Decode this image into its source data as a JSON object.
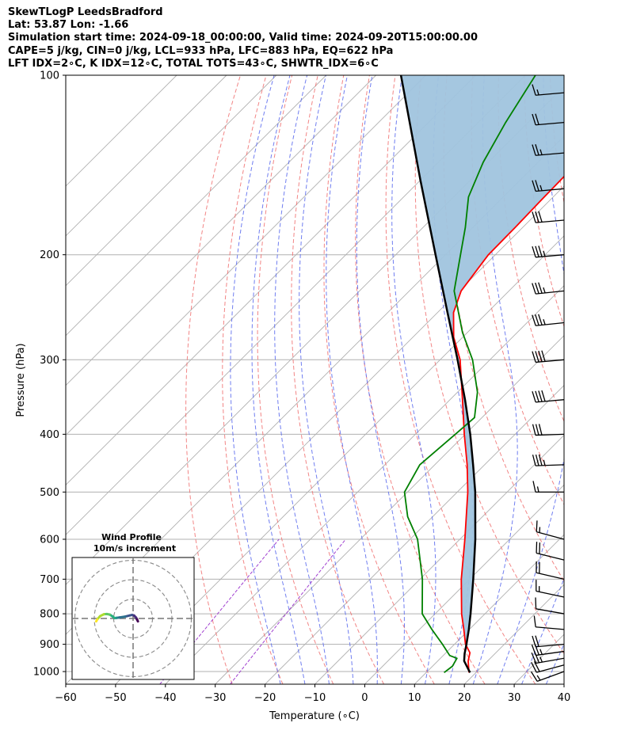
{
  "header": {
    "line1": "SkewTLogP LeedsBradford",
    "line2": "Lat: 53.87   Lon: -1.66",
    "line3": "Simulation start time: 2024-09-18_00:00:00, Valid time: 2024-09-20T15:00:00.00",
    "line4": "CAPE=5 j/kg, CIN=0 j/kg, LCL=933 hPa, LFC=883 hPa, EQ=622 hPa",
    "line5": "LFT IDX=2∘C, K IDX=12∘C, TOTAL TOTS=43∘C, SHWTR_IDX=6∘C"
  },
  "colors": {
    "temperature": "#ff0000",
    "dewpoint": "#008000",
    "parcel": "#000000",
    "cape_fill": "#a0c4de",
    "dry_adiabat": "#f07070",
    "moist_adiabat": "#6070ee",
    "mixing_ratio": "#a040d0",
    "isotherm": "#b0b0b0",
    "grid": "#b0b0b0"
  },
  "chart_data": {
    "type": "line",
    "title": "SkewTLogP LeedsBradford",
    "xlabel": "Temperature (∘C)",
    "ylabel": "Pressure (hPa)",
    "xlim": [
      -60,
      40
    ],
    "ylim": [
      1050,
      100
    ],
    "x_ticks": [
      -60,
      -50,
      -40,
      -30,
      -20,
      -10,
      0,
      10,
      20,
      30,
      40
    ],
    "y_ticks": [
      100,
      200,
      300,
      400,
      500,
      600,
      700,
      800,
      900,
      1000
    ],
    "skew_factor": 1.0,
    "series": [
      {
        "name": "temperature",
        "points": [
          [
            1004,
            18.6
          ],
          [
            960,
            16.1
          ],
          [
            930,
            14.8
          ],
          [
            900,
            12.2
          ],
          [
            850,
            8.9
          ],
          [
            800,
            5.3
          ],
          [
            700,
            -1.7
          ],
          [
            600,
            -9.0
          ],
          [
            500,
            -17.9
          ],
          [
            450,
            -23.5
          ],
          [
            400,
            -30.2
          ],
          [
            350,
            -37.5
          ],
          [
            300,
            -46.0
          ],
          [
            275,
            -51.8
          ],
          [
            250,
            -56.8
          ],
          [
            230,
            -59.6
          ],
          [
            200,
            -61.4
          ],
          [
            180,
            -61.5
          ],
          [
            160,
            -61.8
          ],
          [
            140,
            -62.0
          ],
          [
            125,
            -62.2
          ],
          [
            115,
            -62.3
          ],
          [
            100,
            -62.0
          ]
        ]
      },
      {
        "name": "dewpoint",
        "points": [
          [
            1004,
            13.6
          ],
          [
            980,
            14.0
          ],
          [
            950,
            13.3
          ],
          [
            940,
            11.3
          ],
          [
            900,
            7.6
          ],
          [
            850,
            2.5
          ],
          [
            800,
            -2.6
          ],
          [
            700,
            -9.5
          ],
          [
            600,
            -18.5
          ],
          [
            550,
            -25.0
          ],
          [
            500,
            -30.6
          ],
          [
            450,
            -33.0
          ],
          [
            400,
            -32.0
          ],
          [
            375,
            -31.5
          ],
          [
            340,
            -36.0
          ],
          [
            300,
            -43.5
          ],
          [
            270,
            -51.0
          ],
          [
            230,
            -61.0
          ],
          [
            200,
            -67.0
          ],
          [
            180,
            -71.5
          ],
          [
            160,
            -77.0
          ],
          [
            140,
            -81.0
          ],
          [
            120,
            -84.5
          ],
          [
            100,
            -88.0
          ]
        ]
      },
      {
        "name": "parcel",
        "points": [
          [
            1004,
            18.8
          ],
          [
            960,
            15.3
          ],
          [
            933,
            13.9
          ],
          [
            900,
            12.4
          ],
          [
            850,
            9.9
          ],
          [
            800,
            7.1
          ],
          [
            700,
            0.7
          ],
          [
            600,
            -6.9
          ],
          [
            500,
            -16.4
          ],
          [
            450,
            -22.3
          ],
          [
            400,
            -29.0
          ],
          [
            350,
            -37.0
          ],
          [
            300,
            -46.5
          ],
          [
            250,
            -58.0
          ],
          [
            200,
            -72.0
          ],
          [
            150,
            -90.0
          ],
          [
            100,
            -115.0
          ]
        ]
      }
    ],
    "cape_region": "between temperature and parcel",
    "wind_barbs": [
      {
        "pressure": 1000,
        "speed_kt": 15,
        "dir_deg": 250
      },
      {
        "pressure": 975,
        "speed_kt": 20,
        "dir_deg": 255
      },
      {
        "pressure": 950,
        "speed_kt": 25,
        "dir_deg": 260
      },
      {
        "pressure": 925,
        "speed_kt": 25,
        "dir_deg": 262
      },
      {
        "pressure": 900,
        "speed_kt": 20,
        "dir_deg": 265
      },
      {
        "pressure": 850,
        "speed_kt": 10,
        "dir_deg": 275
      },
      {
        "pressure": 800,
        "speed_kt": 10,
        "dir_deg": 280
      },
      {
        "pressure": 750,
        "speed_kt": 15,
        "dir_deg": 282
      },
      {
        "pressure": 700,
        "speed_kt": 20,
        "dir_deg": 283
      },
      {
        "pressure": 650,
        "speed_kt": 20,
        "dir_deg": 284
      },
      {
        "pressure": 600,
        "speed_kt": 15,
        "dir_deg": 285
      },
      {
        "pressure": 500,
        "speed_kt": 15,
        "dir_deg": 270
      },
      {
        "pressure": 450,
        "speed_kt": 35,
        "dir_deg": 268
      },
      {
        "pressure": 400,
        "speed_kt": 30,
        "dir_deg": 268
      },
      {
        "pressure": 350,
        "speed_kt": 40,
        "dir_deg": 265
      },
      {
        "pressure": 300,
        "speed_kt": 40,
        "dir_deg": 265
      },
      {
        "pressure": 260,
        "speed_kt": 35,
        "dir_deg": 264
      },
      {
        "pressure": 230,
        "speed_kt": 35,
        "dir_deg": 264
      },
      {
        "pressure": 200,
        "speed_kt": 35,
        "dir_deg": 265
      },
      {
        "pressure": 175,
        "speed_kt": 30,
        "dir_deg": 265
      },
      {
        "pressure": 155,
        "speed_kt": 25,
        "dir_deg": 265
      },
      {
        "pressure": 135,
        "speed_kt": 25,
        "dir_deg": 265
      },
      {
        "pressure": 120,
        "speed_kt": 20,
        "dir_deg": 265
      },
      {
        "pressure": 107,
        "speed_kt": 15,
        "dir_deg": 265
      }
    ],
    "hodograph": {
      "title_line1": "Wind Profile",
      "title_line2": "10m/s increment",
      "ring_step_ms": 10,
      "rings": 3,
      "points": [
        [
          2.5,
          -1.5
        ],
        [
          2.0,
          -0.5
        ],
        [
          1.5,
          0.5
        ],
        [
          0.5,
          1.5
        ],
        [
          -0.5,
          1.8
        ],
        [
          -1.5,
          1.6
        ],
        [
          -4.0,
          1.0
        ],
        [
          -7.0,
          0.5
        ],
        [
          -8.5,
          0.3
        ],
        [
          -9.5,
          0.2
        ],
        [
          -10.5,
          1.0
        ],
        [
          -12.0,
          2.0
        ],
        [
          -13.5,
          2.3
        ],
        [
          -15.0,
          2.2
        ],
        [
          -17.0,
          1.2
        ],
        [
          -18.5,
          -0.5
        ],
        [
          -19.0,
          -1.5
        ]
      ]
    }
  }
}
